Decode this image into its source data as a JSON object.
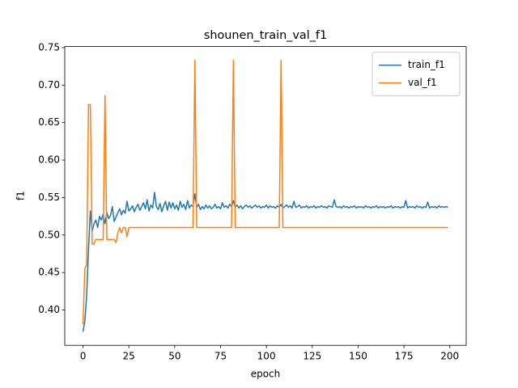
{
  "chart_data": {
    "type": "line",
    "title": "shounen_train_val_f1",
    "x_label": "epoch",
    "y_label": "f1",
    "x": [
      0,
      1,
      2,
      3,
      4,
      5,
      6,
      7,
      8,
      9,
      10,
      11,
      12,
      13,
      14,
      15,
      16,
      17,
      18,
      19,
      20,
      21,
      22,
      23,
      24,
      25,
      26,
      27,
      28,
      29,
      30,
      31,
      32,
      33,
      34,
      35,
      36,
      37,
      38,
      39,
      40,
      41,
      42,
      43,
      44,
      45,
      46,
      47,
      48,
      49,
      50,
      51,
      52,
      53,
      54,
      55,
      56,
      57,
      58,
      59,
      60,
      61,
      62,
      63,
      64,
      65,
      66,
      67,
      68,
      69,
      70,
      71,
      72,
      73,
      74,
      75,
      76,
      77,
      78,
      79,
      80,
      81,
      82,
      83,
      84,
      85,
      86,
      87,
      88,
      89,
      90,
      91,
      92,
      93,
      94,
      95,
      96,
      97,
      98,
      99,
      100,
      101,
      102,
      103,
      104,
      105,
      106,
      107,
      108,
      109,
      110,
      111,
      112,
      113,
      114,
      115,
      116,
      117,
      118,
      119,
      120,
      121,
      122,
      123,
      124,
      125,
      126,
      127,
      128,
      129,
      130,
      131,
      132,
      133,
      134,
      135,
      136,
      137,
      138,
      139,
      140,
      141,
      142,
      143,
      144,
      145,
      146,
      147,
      148,
      149,
      150,
      151,
      152,
      153,
      154,
      155,
      156,
      157,
      158,
      159,
      160,
      161,
      162,
      163,
      164,
      165,
      166,
      167,
      168,
      169,
      170,
      171,
      172,
      173,
      174,
      175,
      176,
      177,
      178,
      179,
      180,
      181,
      182,
      183,
      184,
      185,
      186,
      187,
      188,
      189,
      190,
      191,
      192,
      193,
      194,
      195,
      196,
      197,
      198,
      199
    ],
    "series": [
      {
        "name": "train_f1",
        "color": "#1f77b4",
        "values": [
          0.371,
          0.385,
          0.42,
          0.48,
          0.532,
          0.505,
          0.515,
          0.52,
          0.51,
          0.525,
          0.52,
          0.528,
          0.515,
          0.53,
          0.522,
          0.526,
          0.538,
          0.518,
          0.524,
          0.53,
          0.535,
          0.527,
          0.533,
          0.529,
          0.545,
          0.532,
          0.535,
          0.539,
          0.531,
          0.537,
          0.541,
          0.533,
          0.538,
          0.543,
          0.535,
          0.547,
          0.532,
          0.54,
          0.536,
          0.557,
          0.538,
          0.534,
          0.542,
          0.531,
          0.539,
          0.545,
          0.533,
          0.544,
          0.536,
          0.543,
          0.535,
          0.54,
          0.533,
          0.545,
          0.537,
          0.541,
          0.534,
          0.546,
          0.536,
          0.54,
          0.538,
          0.555,
          0.537,
          0.541,
          0.534,
          0.538,
          0.535,
          0.54,
          0.536,
          0.539,
          0.535,
          0.537,
          0.541,
          0.536,
          0.538,
          0.535,
          0.543,
          0.537,
          0.539,
          0.536,
          0.541,
          0.538,
          0.546,
          0.537,
          0.54,
          0.536,
          0.539,
          0.535,
          0.538,
          0.54,
          0.537,
          0.539,
          0.536,
          0.538,
          0.54,
          0.537,
          0.539,
          0.536,
          0.538,
          0.537,
          0.54,
          0.536,
          0.539,
          0.537,
          0.538,
          0.536,
          0.539,
          0.537,
          0.541,
          0.536,
          0.538,
          0.54,
          0.537,
          0.539,
          0.536,
          0.545,
          0.537,
          0.538,
          0.54,
          0.536,
          0.538,
          0.537,
          0.539,
          0.536,
          0.538,
          0.537,
          0.539,
          0.536,
          0.538,
          0.537,
          0.539,
          0.537,
          0.538,
          0.536,
          0.539,
          0.538,
          0.537,
          0.547,
          0.538,
          0.537,
          0.538,
          0.536,
          0.539,
          0.537,
          0.538,
          0.536,
          0.538,
          0.537,
          0.539,
          0.536,
          0.538,
          0.537,
          0.538,
          0.536,
          0.539,
          0.537,
          0.538,
          0.536,
          0.538,
          0.537,
          0.539,
          0.536,
          0.538,
          0.537,
          0.538,
          0.536,
          0.538,
          0.537,
          0.539,
          0.536,
          0.538,
          0.537,
          0.538,
          0.536,
          0.538,
          0.537,
          0.546,
          0.536,
          0.538,
          0.537,
          0.538,
          0.536,
          0.539,
          0.537,
          0.538,
          0.536,
          0.538,
          0.537,
          0.544,
          0.536,
          0.538,
          0.537,
          0.538,
          0.536,
          0.539,
          0.537,
          0.538,
          0.537,
          0.538,
          0.537
        ]
      },
      {
        "name": "val_f1",
        "color": "#ff7f0e",
        "values": [
          0.381,
          0.455,
          0.46,
          0.674,
          0.674,
          0.488,
          0.488,
          0.494,
          0.494,
          0.494,
          0.494,
          0.494,
          0.686,
          0.494,
          0.494,
          0.494,
          0.494,
          0.494,
          0.49,
          0.503,
          0.51,
          0.503,
          0.51,
          0.51,
          0.498,
          0.51,
          0.51,
          0.51,
          0.51,
          0.51,
          0.51,
          0.51,
          0.51,
          0.51,
          0.51,
          0.51,
          0.51,
          0.51,
          0.51,
          0.51,
          0.51,
          0.51,
          0.51,
          0.51,
          0.51,
          0.51,
          0.51,
          0.51,
          0.51,
          0.51,
          0.51,
          0.51,
          0.51,
          0.51,
          0.51,
          0.51,
          0.51,
          0.51,
          0.51,
          0.51,
          0.51,
          0.733,
          0.51,
          0.51,
          0.51,
          0.51,
          0.51,
          0.51,
          0.51,
          0.51,
          0.51,
          0.51,
          0.51,
          0.51,
          0.51,
          0.51,
          0.51,
          0.51,
          0.51,
          0.51,
          0.51,
          0.51,
          0.733,
          0.51,
          0.51,
          0.51,
          0.51,
          0.51,
          0.51,
          0.51,
          0.51,
          0.51,
          0.51,
          0.51,
          0.51,
          0.51,
          0.51,
          0.51,
          0.51,
          0.51,
          0.51,
          0.51,
          0.51,
          0.51,
          0.51,
          0.51,
          0.51,
          0.51,
          0.733,
          0.51,
          0.51,
          0.51,
          0.51,
          0.51,
          0.51,
          0.51,
          0.51,
          0.51,
          0.51,
          0.51,
          0.51,
          0.51,
          0.51,
          0.51,
          0.51,
          0.51,
          0.51,
          0.51,
          0.51,
          0.51,
          0.51,
          0.51,
          0.51,
          0.51,
          0.51,
          0.51,
          0.51,
          0.51,
          0.51,
          0.51,
          0.51,
          0.51,
          0.51,
          0.51,
          0.51,
          0.51,
          0.51,
          0.51,
          0.51,
          0.51,
          0.51,
          0.51,
          0.51,
          0.51,
          0.51,
          0.51,
          0.51,
          0.51,
          0.51,
          0.51,
          0.51,
          0.51,
          0.51,
          0.51,
          0.51,
          0.51,
          0.51,
          0.51,
          0.51,
          0.51,
          0.51,
          0.51,
          0.51,
          0.51,
          0.51,
          0.51,
          0.51,
          0.51,
          0.51,
          0.51,
          0.51,
          0.51,
          0.51,
          0.51,
          0.51,
          0.51,
          0.51,
          0.51,
          0.51,
          0.51,
          0.51,
          0.51,
          0.51,
          0.51,
          0.51,
          0.51,
          0.51,
          0.51,
          0.51,
          0.51
        ]
      }
    ],
    "xlim": [
      -9.95,
      208.95
    ],
    "xticks": [
      0,
      25,
      50,
      75,
      100,
      125,
      150,
      175,
      200
    ],
    "ylim": [
      0.3529,
      0.7514
    ],
    "yticks": [
      {
        "value": 0.4,
        "label": "0.40"
      },
      0.45,
      {
        "value": 0.5,
        "label": "0.50"
      },
      0.55,
      {
        "value": 0.6,
        "label": "0.60"
      },
      0.65,
      {
        "value": 0.7,
        "label": "0.70"
      },
      0.75
    ],
    "legend": "upper right"
  }
}
